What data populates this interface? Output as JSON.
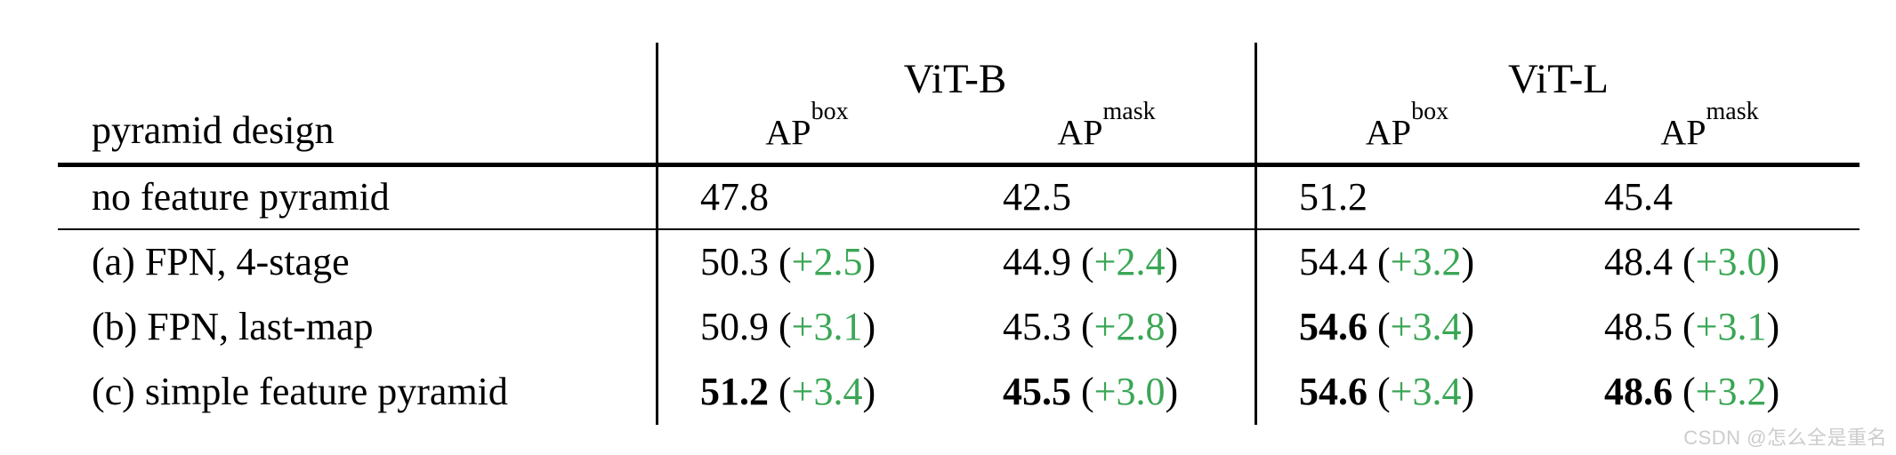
{
  "table": {
    "header": {
      "row_label": "pyramid design",
      "groups": [
        {
          "label": "ViT-B"
        },
        {
          "label": "ViT-L"
        }
      ],
      "metrics": [
        {
          "base": "AP",
          "sup": "box"
        },
        {
          "base": "AP",
          "sup": "mask"
        },
        {
          "base": "AP",
          "sup": "box"
        },
        {
          "base": "AP",
          "sup": "mask"
        }
      ]
    },
    "baseline_row": {
      "label": "no feature pyramid",
      "values": [
        "47.8",
        "42.5",
        "51.2",
        "45.4"
      ]
    },
    "rows": [
      {
        "label": "(a) FPN, 4-stage",
        "cells": [
          {
            "value": "50.3",
            "delta": "+2.5",
            "bold": false
          },
          {
            "value": "44.9",
            "delta": "+2.4",
            "bold": false
          },
          {
            "value": "54.4",
            "delta": "+3.2",
            "bold": false
          },
          {
            "value": "48.4",
            "delta": "+3.0",
            "bold": false
          }
        ]
      },
      {
        "label": "(b) FPN, last-map",
        "cells": [
          {
            "value": "50.9",
            "delta": "+3.1",
            "bold": false
          },
          {
            "value": "45.3",
            "delta": "+2.8",
            "bold": false
          },
          {
            "value": "54.6",
            "delta": "+3.4",
            "bold": true
          },
          {
            "value": "48.5",
            "delta": "+3.1",
            "bold": false
          }
        ]
      },
      {
        "label": "(c) simple feature pyramid",
        "cells": [
          {
            "value": "51.2",
            "delta": "+3.4",
            "bold": true
          },
          {
            "value": "45.5",
            "delta": "+3.0",
            "bold": true
          },
          {
            "value": "54.6",
            "delta": "+3.4",
            "bold": true
          },
          {
            "value": "48.6",
            "delta": "+3.2",
            "bold": true
          }
        ]
      }
    ]
  },
  "colors": {
    "text": "#000000",
    "delta_green": "#3aa655",
    "watermark_gray": "#cccccc"
  },
  "watermark": {
    "text": "CSDN @怎么全是重名"
  }
}
